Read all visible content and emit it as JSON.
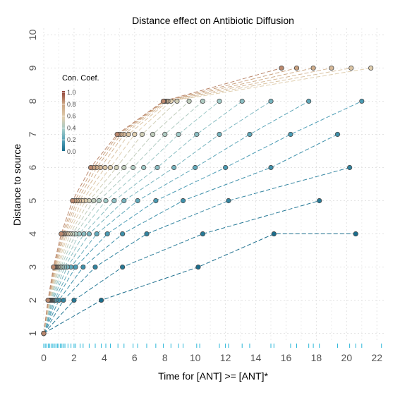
{
  "chart_data": {
    "type": "line",
    "title": "Distance effect on Antibiotic Diffusion",
    "xlabel": "Time for [ANT] >= [ANT]*",
    "ylabel": "Distance to source",
    "xlim": [
      0,
      22.5
    ],
    "ylim": [
      0.8,
      10.2
    ],
    "x_ticks": [
      "0",
      "2",
      "4",
      "6",
      "8",
      "10",
      "12",
      "14",
      "16",
      "18",
      "20",
      "22"
    ],
    "y_ticks": [
      "1",
      "2",
      "3",
      "4",
      "5",
      "6",
      "7",
      "8",
      "9",
      "10"
    ],
    "grid": true,
    "legend": {
      "title": "Con. Coef.",
      "position": "top-left",
      "labels": [
        "1.0",
        "0.8",
        "0.6",
        "0.4",
        "0.2",
        "0.0"
      ],
      "colors": [
        "#1a6d8c",
        "#4a9bb4",
        "#9fcac8",
        "#e0cfb0",
        "#c9a17f",
        "#8e3a32"
      ]
    },
    "series": [
      {
        "coef": 0.0,
        "x": [
          0,
          3.8,
          10.2,
          15.2,
          20.6
        ],
        "y": [
          1,
          2,
          3,
          4,
          4
        ]
      },
      {
        "coef": 0.05,
        "x": [
          0,
          2.0,
          5.2,
          10.5,
          18.2
        ],
        "y": [
          1,
          2,
          3,
          4,
          5
        ]
      },
      {
        "coef": 0.1,
        "x": [
          0,
          1.3,
          3.4,
          6.8,
          12.2,
          20.2
        ],
        "y": [
          1,
          2,
          3,
          4,
          5,
          6
        ]
      },
      {
        "coef": 0.15,
        "x": [
          0,
          1.0,
          2.6,
          5.2,
          9.2,
          15.0,
          19.4
        ],
        "y": [
          1,
          2,
          3,
          4,
          5,
          6,
          7
        ]
      },
      {
        "coef": 0.2,
        "x": [
          0,
          0.8,
          2.1,
          4.2,
          7.4,
          12.0,
          16.3,
          21.0
        ],
        "y": [
          1,
          2,
          3,
          4,
          5,
          6,
          7,
          8
        ]
      },
      {
        "coef": 0.25,
        "x": [
          0,
          0.7,
          1.8,
          3.5,
          6.2,
          10.0,
          13.6,
          17.5
        ],
        "y": [
          1,
          2,
          3,
          4,
          5,
          6,
          7,
          8
        ]
      },
      {
        "coef": 0.3,
        "x": [
          0,
          0.6,
          1.55,
          3.0,
          5.3,
          8.6,
          11.6,
          15.0
        ],
        "y": [
          1,
          2,
          3,
          4,
          5,
          6,
          7,
          8
        ]
      },
      {
        "coef": 0.35,
        "x": [
          0,
          0.55,
          1.38,
          2.65,
          4.65,
          7.5,
          10.1,
          13.1
        ],
        "y": [
          1,
          2,
          3,
          4,
          5,
          6,
          7,
          8
        ]
      },
      {
        "coef": 0.4,
        "x": [
          0,
          0.5,
          1.24,
          2.35,
          4.1,
          6.6,
          8.9,
          11.6
        ],
        "y": [
          1,
          2,
          3,
          4,
          5,
          6,
          7,
          8
        ]
      },
      {
        "coef": 0.45,
        "x": [
          0,
          0.46,
          1.12,
          2.1,
          3.65,
          5.9,
          8.0,
          10.5
        ],
        "y": [
          1,
          2,
          3,
          4,
          5,
          6,
          7,
          8
        ]
      },
      {
        "coef": 0.5,
        "x": [
          0,
          0.43,
          1.02,
          1.9,
          3.3,
          5.3,
          7.2,
          9.6
        ],
        "y": [
          1,
          2,
          3,
          4,
          5,
          6,
          7,
          8
        ]
      },
      {
        "coef": 0.55,
        "x": [
          0,
          0.4,
          0.94,
          1.74,
          3.0,
          4.8,
          6.5,
          8.8
        ],
        "y": [
          1,
          2,
          3,
          4,
          5,
          6,
          7,
          8
        ]
      },
      {
        "coef": 0.6,
        "x": [
          0,
          0.38,
          0.87,
          1.6,
          2.75,
          4.4,
          6.0,
          8.4,
          21.6
        ],
        "y": [
          1,
          2,
          3,
          4,
          5,
          6,
          7,
          8,
          9
        ]
      },
      {
        "coef": 0.65,
        "x": [
          0,
          0.36,
          0.81,
          1.48,
          2.55,
          4.05,
          5.6,
          8.2,
          20.3
        ],
        "y": [
          1,
          2,
          3,
          4,
          5,
          6,
          7,
          8,
          9
        ]
      },
      {
        "coef": 0.7,
        "x": [
          0,
          0.34,
          0.76,
          1.38,
          2.35,
          3.75,
          5.3,
          8.1,
          19.0
        ],
        "y": [
          1,
          2,
          3,
          4,
          5,
          6,
          7,
          8,
          9
        ]
      },
      {
        "coef": 0.75,
        "x": [
          0,
          0.32,
          0.72,
          1.3,
          2.2,
          3.5,
          5.1,
          8.0,
          17.8
        ],
        "y": [
          1,
          2,
          3,
          4,
          5,
          6,
          7,
          8,
          9
        ]
      },
      {
        "coef": 0.8,
        "x": [
          0,
          0.3,
          0.68,
          1.22,
          2.05,
          3.3,
          4.95,
          7.95,
          16.7
        ],
        "y": [
          1,
          2,
          3,
          4,
          5,
          6,
          7,
          8,
          9
        ]
      },
      {
        "coef": 0.85,
        "x": [
          0,
          0.28,
          0.64,
          1.15,
          1.9,
          3.1,
          4.85,
          7.9,
          15.7
        ],
        "y": [
          1,
          2,
          3,
          4,
          5,
          6,
          7,
          8,
          9
        ]
      }
    ],
    "rug_x": [
      0,
      0.1,
      0.2,
      0.3,
      0.4,
      0.5,
      0.6,
      0.7,
      0.8,
      0.9,
      1.0,
      1.1,
      1.2,
      1.3,
      1.4,
      1.6,
      1.8,
      2.0,
      2.1,
      2.4,
      2.6,
      3.0,
      3.4,
      3.8,
      4.1,
      4.4,
      4.9,
      5.3,
      5.9,
      6.2,
      6.8,
      7.4,
      7.9,
      8.4,
      8.9,
      9.2,
      10.1,
      10.3,
      11.6,
      12.0,
      12.2,
      13.1,
      13.6,
      15.0,
      15.2,
      16.3,
      16.7,
      17.5,
      17.8,
      18.2,
      19.4,
      20.2,
      20.6,
      21.0,
      22.3
    ]
  }
}
